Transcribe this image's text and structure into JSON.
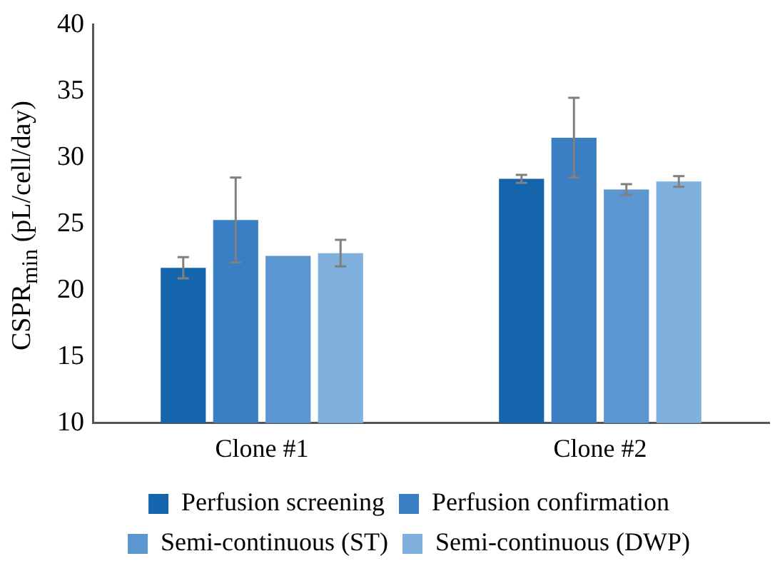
{
  "chart_data": {
    "type": "bar",
    "ylabel": "CSPR$_{min}$ (pL/cell/day)",
    "categories": [
      "Clone #1",
      "Clone #2"
    ],
    "series": [
      {
        "name": "Perfusion screening",
        "color": "#1565ad",
        "values": [
          21.7,
          28.4
        ],
        "errors": [
          0.8,
          0.3
        ]
      },
      {
        "name": "Perfusion confirmation",
        "color": "#3a7fc4",
        "values": [
          25.3,
          31.5
        ],
        "errors": [
          3.2,
          3.0
        ]
      },
      {
        "name": "Semi-continuous (ST)",
        "color": "#5b96d0",
        "values": [
          22.6,
          27.6
        ],
        "errors": [
          null,
          0.4
        ]
      },
      {
        "name": "Semi-continuous (DWP)",
        "color": "#7fb0de",
        "values": [
          22.8,
          28.2
        ],
        "errors": [
          1.0,
          0.4
        ]
      }
    ],
    "ylim": [
      10,
      40
    ],
    "yticks": [
      10,
      15,
      20,
      25,
      30,
      35,
      40
    ],
    "grid": false,
    "legend": "bottom"
  }
}
